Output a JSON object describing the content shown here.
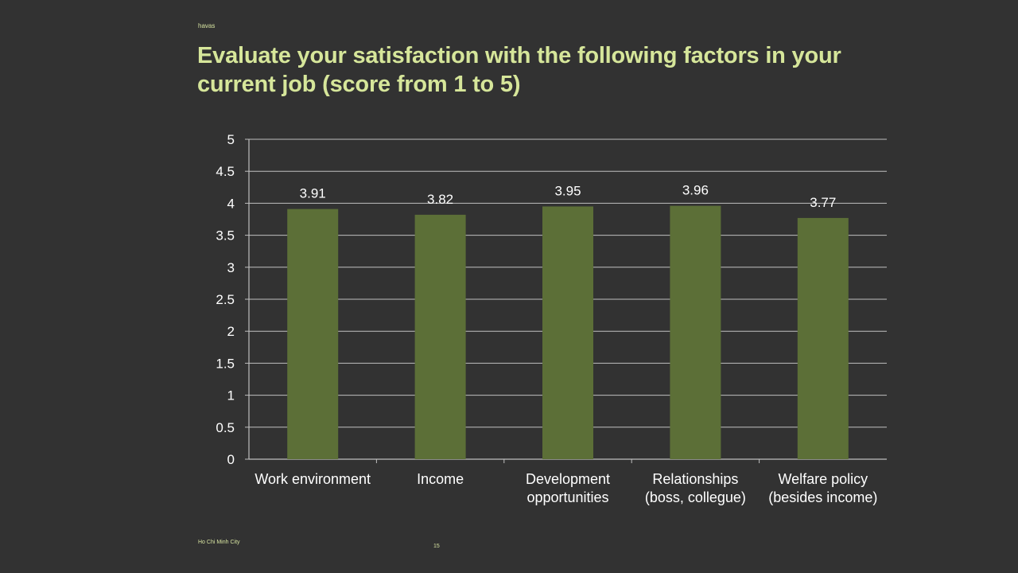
{
  "brand": "havas",
  "title": "Evaluate your satisfaction with the following factors in your current job (score from 1 to 5)",
  "footer": {
    "city": "Ho Chi Minh City",
    "page": "15"
  },
  "colors": {
    "background": "#323232",
    "bar": "#5c6f37",
    "title": "#d6e69a",
    "grid": "#bfbfbf"
  },
  "chart_data": {
    "type": "bar",
    "categories": [
      [
        "Work environment"
      ],
      [
        "Income"
      ],
      [
        "Development",
        "opportunities"
      ],
      [
        "Relationships",
        "(boss, collegue)"
      ],
      [
        "Welfare policy",
        "(besides income)"
      ]
    ],
    "values": [
      3.91,
      3.82,
      3.95,
      3.96,
      3.77
    ],
    "value_labels": [
      "3.91",
      "3.82",
      "3.95",
      "3.96",
      "3.77"
    ],
    "title": "",
    "xlabel": "",
    "ylabel": "",
    "ylim": [
      0,
      5
    ],
    "yticks": [
      "0",
      "0.5",
      "1",
      "1.5",
      "2",
      "2.5",
      "3",
      "3.5",
      "4",
      "4.5",
      "5"
    ],
    "grid": true,
    "legend": "none"
  }
}
